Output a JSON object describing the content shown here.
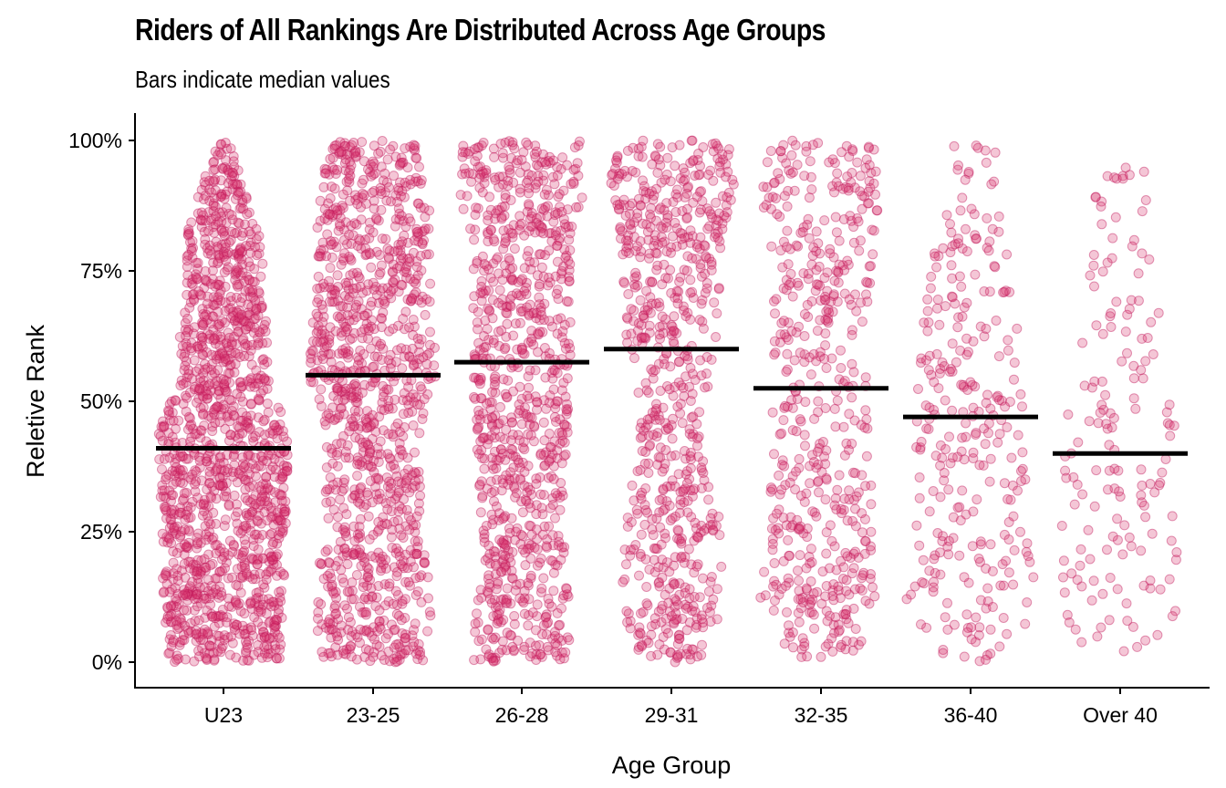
{
  "title": "Riders of All Rankings Are Distributed Across Age Groups",
  "subtitle": "Bars indicate median values",
  "colors": {
    "point_fill": "#d6336c",
    "point_stroke": "#c2185b",
    "median_bar": "#000000"
  },
  "chart_data": {
    "type": "scatter",
    "subtype": "beeswarm",
    "xlabel": "Age Group",
    "ylabel": "Reletive Rank",
    "ylim": [
      0,
      1
    ],
    "yticks": [
      0,
      0.25,
      0.5,
      0.75,
      1
    ],
    "ytick_labels": [
      "0%",
      "25%",
      "50%",
      "75%",
      "100%"
    ],
    "categories": [
      "U23",
      "23-25",
      "26-28",
      "29-31",
      "32-35",
      "36-40",
      "Over 40"
    ],
    "medians": [
      0.41,
      0.55,
      0.575,
      0.6,
      0.525,
      0.47,
      0.4
    ],
    "approx_point_counts": [
      1400,
      1100,
      900,
      700,
      520,
      290,
      160
    ],
    "grid": false
  }
}
